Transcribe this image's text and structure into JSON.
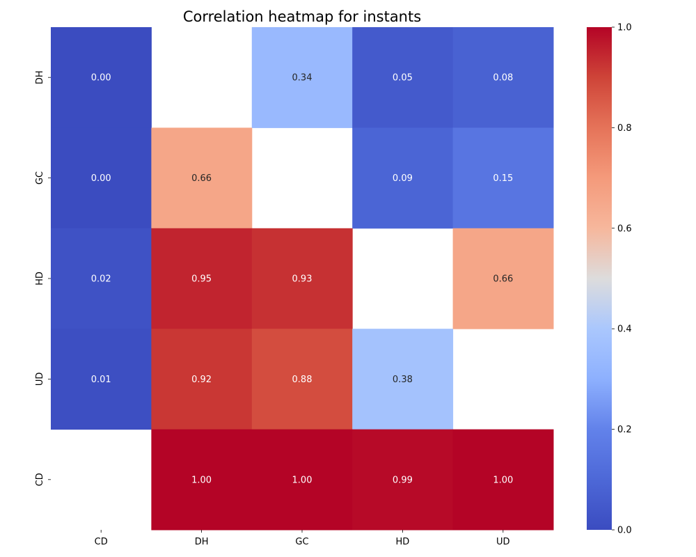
{
  "chart_data": {
    "type": "heatmap",
    "title": "Correlation heatmap for instants",
    "x_categories": [
      "CD",
      "DH",
      "GC",
      "HD",
      "UD"
    ],
    "y_categories": [
      "DH",
      "GC",
      "HD",
      "UD",
      "CD"
    ],
    "values": [
      [
        0.0,
        null,
        0.34,
        0.05,
        0.08
      ],
      [
        0.0,
        0.66,
        null,
        0.09,
        0.15
      ],
      [
        0.02,
        0.95,
        0.93,
        null,
        0.66
      ],
      [
        0.01,
        0.92,
        0.88,
        0.38,
        null
      ],
      [
        null,
        1.0,
        1.0,
        0.99,
        1.0
      ]
    ],
    "value_format": "0.00",
    "colormap": "coolwarm",
    "vmin": 0.0,
    "vmax": 1.0,
    "colorbar_ticks": [
      "0.0",
      "0.2",
      "0.4",
      "0.6",
      "0.8",
      "1.0"
    ],
    "colorbar_position": "right",
    "grid": false
  },
  "colors": {
    "low": "#3b4cc0",
    "mid": "#dddcdc",
    "high": "#b40426",
    "label_light": "#ffffff",
    "label_dark": "#262626"
  }
}
